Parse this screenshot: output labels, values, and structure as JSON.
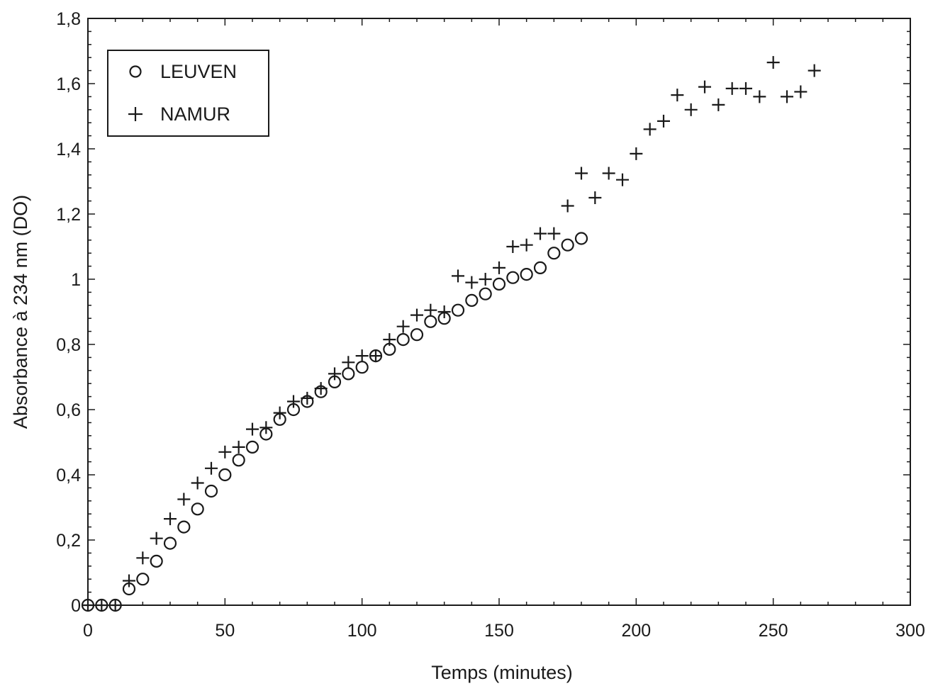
{
  "chart_data": {
    "type": "scatter",
    "title": "",
    "xlabel": "Temps (minutes)",
    "ylabel": "Absorbance à 234 nm (DO)",
    "xlim": [
      0,
      300
    ],
    "ylim": [
      0,
      1.8
    ],
    "x_ticks": [
      0,
      50,
      100,
      150,
      200,
      250,
      300
    ],
    "x_tick_labels": [
      "0",
      "50",
      "100",
      "150",
      "200",
      "250",
      "300"
    ],
    "y_ticks": [
      0,
      0.2,
      0.4,
      0.6,
      0.8,
      1,
      1.2,
      1.4,
      1.6,
      1.8
    ],
    "y_tick_labels": [
      "0",
      "0,2",
      "0,4",
      "0,6",
      "0,8",
      "1",
      "1,2",
      "1,4",
      "1,6",
      "1,8"
    ],
    "grid": false,
    "legend": {
      "position": "top-left"
    },
    "series": [
      {
        "name": "LEUVEN",
        "marker": "circle",
        "color": "#1a1a1a",
        "x": [
          0,
          5,
          10,
          15,
          20,
          25,
          30,
          35,
          40,
          45,
          50,
          55,
          60,
          65,
          70,
          75,
          80,
          85,
          90,
          95,
          100,
          105,
          110,
          115,
          120,
          125,
          130,
          135,
          140,
          145,
          150,
          155,
          160,
          165,
          170,
          175,
          180
        ],
        "y": [
          0,
          0,
          0,
          0.05,
          0.08,
          0.135,
          0.19,
          0.24,
          0.295,
          0.35,
          0.4,
          0.445,
          0.485,
          0.525,
          0.57,
          0.6,
          0.625,
          0.655,
          0.685,
          0.71,
          0.73,
          0.765,
          0.785,
          0.815,
          0.83,
          0.87,
          0.88,
          0.905,
          0.935,
          0.955,
          0.985,
          1.005,
          1.015,
          1.035,
          1.08,
          1.105,
          1.125
        ]
      },
      {
        "name": "NAMUR",
        "marker": "plus",
        "color": "#1a1a1a",
        "x": [
          0,
          5,
          10,
          15,
          20,
          25,
          30,
          35,
          40,
          45,
          50,
          55,
          60,
          65,
          70,
          75,
          80,
          85,
          90,
          95,
          100,
          105,
          110,
          115,
          120,
          125,
          130,
          135,
          140,
          145,
          150,
          155,
          160,
          165,
          170,
          175,
          180,
          185,
          190,
          195,
          200,
          205,
          210,
          215,
          220,
          225,
          230,
          235,
          240,
          245,
          250,
          255,
          260,
          265
        ],
        "y": [
          0,
          0,
          0,
          0.075,
          0.145,
          0.205,
          0.265,
          0.325,
          0.375,
          0.42,
          0.47,
          0.485,
          0.54,
          0.545,
          0.59,
          0.625,
          0.635,
          0.665,
          0.71,
          0.745,
          0.765,
          0.765,
          0.815,
          0.855,
          0.89,
          0.905,
          0.9,
          1.01,
          0.99,
          1.0,
          1.035,
          1.1,
          1.105,
          1.14,
          1.14,
          1.225,
          1.325,
          1.25,
          1.325,
          1.305,
          1.385,
          1.46,
          1.485,
          1.565,
          1.52,
          1.59,
          1.535,
          1.585,
          1.585,
          1.56,
          1.665,
          1.56,
          1.575,
          1.64
        ]
      }
    ]
  }
}
